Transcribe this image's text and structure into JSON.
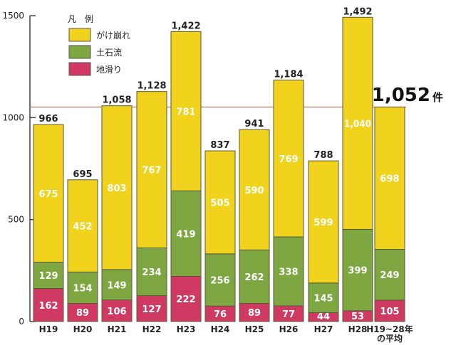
{
  "chart_data": {
    "type": "bar",
    "stacked": true,
    "title": "",
    "xlabel": "",
    "ylabel": "",
    "ylim": [
      0,
      1500
    ],
    "yticks": [
      0,
      500,
      1000,
      1500
    ],
    "ytick_labels": [
      "0",
      "500",
      "1000",
      "1500"
    ],
    "categories": [
      "H19",
      "H20",
      "H21",
      "H22",
      "H23",
      "H24",
      "H25",
      "H26",
      "H27",
      "H28",
      "H19~28年の平均"
    ],
    "category_label_lines": [
      [
        "H19"
      ],
      [
        "H20"
      ],
      [
        "H21"
      ],
      [
        "H22"
      ],
      [
        "H23"
      ],
      [
        "H24"
      ],
      [
        "H25"
      ],
      [
        "H26"
      ],
      [
        "H27"
      ],
      [
        "H28"
      ],
      [
        "H19~28年",
        "の平均"
      ]
    ],
    "legend_title": "凡　例",
    "legend_placement": "top-left",
    "series": [
      {
        "name": "地滑り",
        "color": "#d03a62",
        "values": [
          162,
          89,
          106,
          127,
          222,
          76,
          89,
          77,
          44,
          53,
          105
        ]
      },
      {
        "name": "土石流",
        "color": "#7ea742",
        "values": [
          129,
          154,
          149,
          234,
          419,
          256,
          262,
          338,
          145,
          399,
          249
        ]
      },
      {
        "name": "がけ崩れ",
        "color": "#f1d21d",
        "values": [
          675,
          452,
          803,
          767,
          781,
          505,
          590,
          769,
          599,
          1040,
          698
        ]
      }
    ],
    "legend_order": [
      "がけ崩れ",
      "土石流",
      "地滑り"
    ],
    "totals": [
      966,
      695,
      1058,
      1128,
      1422,
      837,
      941,
      1184,
      788,
      1492,
      1052
    ],
    "total_labels": [
      "966",
      "695",
      "1,058",
      "1,128",
      "1,422",
      "837",
      "941",
      "1,184",
      "788",
      "1,492",
      ""
    ],
    "segment_labels": [
      [
        "162",
        "89",
        "106",
        "127",
        "222",
        "76",
        "89",
        "77",
        "44",
        "53",
        "105"
      ],
      [
        "129",
        "154",
        "149",
        "234",
        "419",
        "256",
        "262",
        "338",
        "145",
        "399",
        "249"
      ],
      [
        "675",
        "452",
        "803",
        "767",
        "781",
        "505",
        "590",
        "769",
        "599",
        "1,040",
        "698"
      ]
    ],
    "reference_line": {
      "value": 1052,
      "color": "#c0614a"
    },
    "average_annotation": {
      "number": "1,052",
      "unit": "件"
    }
  }
}
